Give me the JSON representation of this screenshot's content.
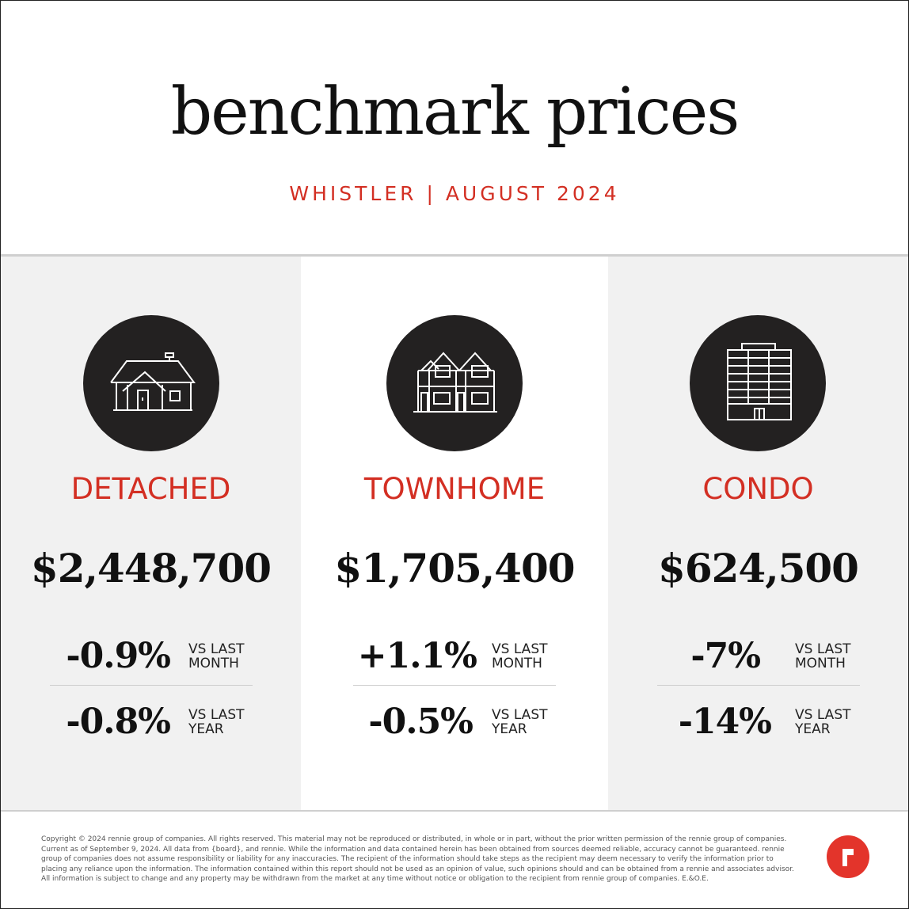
{
  "header": {
    "title": "benchmark prices",
    "subtitle": "WHISTLER | AUGUST 2024"
  },
  "columns": [
    {
      "type": "DETACHED",
      "icon": "detached-house-icon",
      "price": "$2,448,700",
      "month_change": "-0.9%",
      "month_label": "VS LAST MONTH",
      "year_change": "-0.8%",
      "year_label": "VS LAST YEAR"
    },
    {
      "type": "TOWNHOME",
      "icon": "townhome-icon",
      "price": "$1,705,400",
      "month_change": "+1.1%",
      "month_label": "VS LAST MONTH",
      "year_change": "-0.5%",
      "year_label": "VS LAST YEAR"
    },
    {
      "type": "CONDO",
      "icon": "condo-building-icon",
      "price": "$624,500",
      "month_change": "-7%",
      "month_label": "VS LAST MONTH",
      "year_change": "-14%",
      "year_label": "VS LAST YEAR"
    }
  ],
  "footer": {
    "disclaimer": "Copyright © 2024 rennie group of companies. All rights reserved. This material may not be reproduced or distributed, in whole or in part, without the prior written permission of the rennie group of companies. Current as of September 9, 2024. All data from {board}, and rennie. While the information and data contained herein has been obtained from sources deemed reliable, accuracy cannot be guaranteed. rennie group of companies does not assume responsibility or liability for any inaccuracies. The recipient of the information should take steps as the recipient may deem necessary to verify the information prior to placing any reliance upon the information. The information contained within this report should not be used as an opinion of value, such opinions should and can be obtained from a rennie and associates advisor. All information is subject to change and any property may be withdrawn from the market at any time without notice or obligation to the recipient from rennie group of companies. E.&O.E.",
    "logo_letter": "r"
  },
  "colors": {
    "accent": "#d32f23",
    "icon_circle": "#232121",
    "panel_grey": "#f1f1f1",
    "logo_red": "#e3342b"
  }
}
